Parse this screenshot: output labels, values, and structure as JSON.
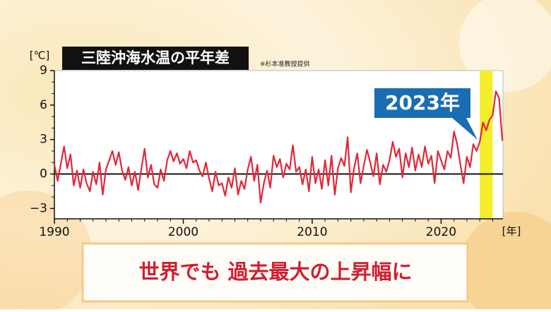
{
  "chart_data": {
    "type": "line",
    "title": "三陸沖海水温の平年差",
    "y_unit": "[℃]",
    "x_unit": "[年]",
    "credit": "※杉本准教授提供",
    "annotation": "2023年",
    "caption": "世界でも 過去最大の上昇幅に",
    "color": "#e0283a",
    "highlight": [
      2023,
      2024
    ],
    "highlight_color": "#f5ee2a",
    "xlim": [
      1990,
      2024.8
    ],
    "ylim": [
      -3.9,
      9
    ],
    "xticks": [
      1990,
      2000,
      2010,
      2020
    ],
    "xminorticks": [
      1991,
      1992,
      1993,
      1994,
      1995,
      1996,
      1997,
      1998,
      1999,
      2001,
      2002,
      2003,
      2004,
      2005,
      2006,
      2007,
      2008,
      2009,
      2011,
      2012,
      2013,
      2014,
      2015,
      2016,
      2017,
      2018,
      2019,
      2021,
      2022,
      2023,
      2024
    ],
    "yticks": [
      {
        "value": -3,
        "label": "−3"
      },
      0,
      3,
      6,
      9
    ],
    "yminorticks": [
      -2,
      -1,
      1,
      2,
      4,
      5,
      7,
      8
    ],
    "x": [
      1990,
      1990.25,
      1990.5,
      1990.75,
      1991,
      1991.25,
      1991.5,
      1991.75,
      1992,
      1992.25,
      1992.5,
      1992.75,
      1993,
      1993.25,
      1993.5,
      1993.75,
      1994,
      1994.25,
      1994.5,
      1994.75,
      1995,
      1995.25,
      1995.5,
      1995.75,
      1996,
      1996.25,
      1996.5,
      1996.75,
      1997,
      1997.25,
      1997.5,
      1997.75,
      1998,
      1998.25,
      1998.5,
      1998.75,
      1999,
      1999.25,
      1999.5,
      1999.75,
      2000,
      2000.25,
      2000.5,
      2000.75,
      2001,
      2001.25,
      2001.5,
      2001.75,
      2002,
      2002.25,
      2002.5,
      2002.75,
      2003,
      2003.25,
      2003.5,
      2003.75,
      2004,
      2004.25,
      2004.5,
      2004.75,
      2005,
      2005.25,
      2005.5,
      2005.75,
      2006,
      2006.25,
      2006.5,
      2006.75,
      2007,
      2007.25,
      2007.5,
      2007.75,
      2008,
      2008.25,
      2008.5,
      2008.75,
      2009,
      2009.25,
      2009.5,
      2009.75,
      2010,
      2010.25,
      2010.5,
      2010.75,
      2011,
      2011.25,
      2011.5,
      2011.75,
      2012,
      2012.25,
      2012.5,
      2012.75,
      2013,
      2013.25,
      2013.5,
      2013.75,
      2014,
      2014.25,
      2014.5,
      2014.75,
      2015,
      2015.25,
      2015.5,
      2015.75,
      2016,
      2016.25,
      2016.5,
      2016.75,
      2017,
      2017.25,
      2017.5,
      2017.75,
      2018,
      2018.25,
      2018.5,
      2018.75,
      2019,
      2019.25,
      2019.5,
      2019.75,
      2020,
      2020.25,
      2020.5,
      2020.75,
      2021,
      2021.25,
      2021.5,
      2021.75,
      2022,
      2022.25,
      2022.5,
      2022.75,
      2023,
      2023.25,
      2023.5,
      2023.75,
      2024,
      2024.25,
      2024.5,
      2024.75
    ],
    "values": [
      0.8,
      -0.6,
      0.9,
      2.4,
      0.5,
      1.7,
      -1.0,
      0.3,
      -1.2,
      0.4,
      -0.8,
      -1.5,
      0.2,
      -0.9,
      1.0,
      -1.8,
      0.4,
      1.2,
      2.0,
      0.8,
      1.9,
      0.3,
      -0.5,
      0.6,
      -1.0,
      0.2,
      -1.4,
      0.5,
      2.2,
      -0.3,
      0.8,
      -0.9,
      -1.2,
      0.4,
      -0.6,
      1.2,
      2.0,
      1.1,
      1.8,
      0.9,
      1.3,
      0.5,
      2.0,
      1.0,
      1.2,
      0.3,
      -0.2,
      1.0,
      -0.4,
      -1.5,
      0.2,
      -1.0,
      -0.8,
      -1.9,
      -0.3,
      -1.2,
      0.5,
      -1.8,
      -0.6,
      -1.3,
      0.4,
      1.5,
      -0.6,
      0.8,
      -2.5,
      -0.8,
      0.3,
      -1.2,
      1.6,
      0.6,
      1.3,
      -0.3,
      0.9,
      0.4,
      2.5,
      0.2,
      0.6,
      -0.9,
      0.4,
      -1.5,
      1.5,
      -0.8,
      0.4,
      -1.3,
      1.2,
      -1.0,
      1.6,
      -1.8,
      0.5,
      1.4,
      0.7,
      3.2,
      -1.6,
      0.5,
      1.8,
      -0.8,
      0.7,
      2.1,
      1.0,
      -0.2,
      1.8,
      -0.9,
      0.8,
      0.2,
      1.2,
      2.8,
      1.5,
      2.2,
      -0.3,
      1.8,
      0.6,
      2.3,
      0.3,
      1.7,
      0.6,
      2.4,
      0.9,
      1.6,
      -0.8,
      2.0,
      1.2,
      0.4,
      2.0,
      1.4,
      3.7,
      2.6,
      0.8,
      -0.8,
      1.5,
      0.6,
      2.6,
      2.0,
      2.8,
      4.5,
      3.8,
      4.7,
      5.1,
      7.2,
      6.6,
      2.9
    ]
  }
}
